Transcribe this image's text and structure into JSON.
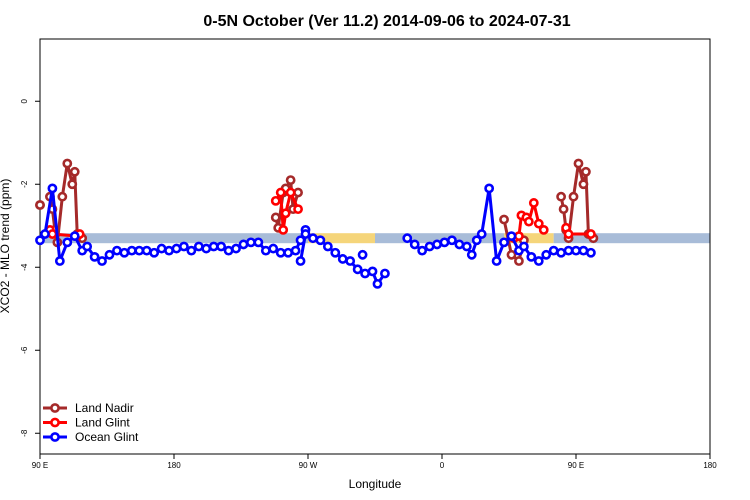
{
  "chart_data": {
    "type": "line",
    "title": "0-5N October (Ver 11.2)   2014-09-06 to 2024-07-31",
    "xlabel": "Longitude",
    "ylabel": "XCO2 - MLO trend (ppm)",
    "xlim": [
      -90,
      180
    ],
    "ylim": [
      -8.5,
      1.5
    ],
    "x_ticks": [
      {
        "value": -90,
        "label": "90 E"
      },
      {
        "value": -36,
        "label": "180"
      },
      {
        "value": 18,
        "label": "90 W"
      },
      {
        "value": 72,
        "label": "0"
      },
      {
        "value": 126,
        "label": "90 E"
      },
      {
        "value": 180,
        "label": "180"
      }
    ],
    "y_ticks": [
      {
        "value": 0,
        "label": "0"
      },
      {
        "value": -2,
        "label": "-2"
      },
      {
        "value": -4,
        "label": "-4"
      },
      {
        "value": -6,
        "label": "-6"
      },
      {
        "value": -8,
        "label": "-8"
      }
    ],
    "background_bands": [
      {
        "y": -3.3,
        "segments": [
          [
            -90,
            18,
            "#a8bcd8"
          ],
          [
            18,
            45,
            "#f5d57a"
          ],
          [
            45,
            97,
            "#a8bcd8"
          ],
          [
            97,
            117,
            "#f5d57a"
          ],
          [
            117,
            180,
            "#a8bcd8"
          ]
        ]
      }
    ],
    "series": [
      {
        "name": "Land Nadir",
        "color": "#a52a2a",
        "segments": [
          [
            [
              -86,
              -2.3
            ],
            [
              -85,
              -2.6
            ],
            [
              -84,
              -3.1
            ],
            [
              -83,
              -3.4
            ],
            [
              -81,
              -2.3
            ],
            [
              -79,
              -1.5
            ],
            [
              -77,
              -2.0
            ],
            [
              -76,
              -1.7
            ],
            [
              -75,
              -3.2
            ],
            [
              -73,
              -3.3
            ]
          ],
          [
            [
              5,
              -2.8
            ],
            [
              6,
              -3.05
            ],
            [
              8,
              -2.2
            ],
            [
              9,
              -2.1
            ],
            [
              11,
              -1.9
            ],
            [
              12,
              -2.6
            ],
            [
              14,
              -2.2
            ]
          ],
          [
            [
              97,
              -2.85
            ],
            [
              100,
              -3.7
            ],
            [
              103,
              -3.85
            ],
            [
              105,
              -3.35
            ]
          ],
          [
            [
              -90,
              -2.5
            ],
            [
              -90,
              -2.5
            ]
          ],
          [
            [
              120,
              -2.3
            ],
            [
              121,
              -2.6
            ],
            [
              122,
              -3.1
            ],
            [
              123,
              -3.3
            ],
            [
              125,
              -2.3
            ],
            [
              127,
              -1.5
            ],
            [
              129,
              -2.0
            ],
            [
              130,
              -1.7
            ],
            [
              131,
              -3.2
            ],
            [
              133,
              -3.3
            ]
          ]
        ]
      },
      {
        "name": "Land Glint",
        "color": "#ff0000",
        "segments": [
          [
            [
              -86,
              -3.1
            ],
            [
              -85,
              -3.2
            ],
            [
              -75,
              -3.25
            ],
            [
              -74,
              -3.2
            ]
          ],
          [
            [
              5,
              -2.4
            ],
            [
              7,
              -2.2
            ],
            [
              8,
              -3.1
            ],
            [
              9,
              -2.7
            ],
            [
              11,
              -2.2
            ],
            [
              14,
              -2.6
            ]
          ],
          [
            [
              101,
              -3.3
            ],
            [
              103,
              -3.25
            ],
            [
              104,
              -2.75
            ],
            [
              106,
              -2.8
            ],
            [
              107,
              -2.9
            ],
            [
              109,
              -2.45
            ],
            [
              111,
              -2.95
            ],
            [
              113,
              -3.1
            ]
          ],
          [
            [
              122,
              -3.05
            ],
            [
              123,
              -3.2
            ],
            [
              132,
              -3.2
            ]
          ]
        ]
      },
      {
        "name": "Ocean Glint",
        "color": "#0000ff",
        "segments": [
          [
            [
              -90,
              -3.35
            ],
            [
              -88,
              -3.2
            ],
            [
              -85,
              -2.1
            ],
            [
              -82,
              -3.85
            ],
            [
              -79,
              -3.4
            ],
            [
              -76,
              -3.25
            ],
            [
              -73,
              -3.6
            ],
            [
              -71,
              -3.5
            ],
            [
              -68,
              -3.75
            ],
            [
              -65,
              -3.85
            ],
            [
              -62,
              -3.7
            ],
            [
              -59,
              -3.6
            ],
            [
              -56,
              -3.65
            ],
            [
              -53,
              -3.6
            ],
            [
              -50,
              -3.6
            ],
            [
              -47,
              -3.6
            ],
            [
              -44,
              -3.65
            ],
            [
              -41,
              -3.55
            ],
            [
              -38,
              -3.6
            ],
            [
              -35,
              -3.55
            ],
            [
              -32,
              -3.5
            ],
            [
              -29,
              -3.6
            ],
            [
              -26,
              -3.5
            ],
            [
              -23,
              -3.55
            ],
            [
              -20,
              -3.5
            ],
            [
              -17,
              -3.5
            ],
            [
              -14,
              -3.6
            ],
            [
              -11,
              -3.55
            ],
            [
              -8,
              -3.45
            ],
            [
              -5,
              -3.4
            ],
            [
              -2,
              -3.4
            ],
            [
              1,
              -3.6
            ],
            [
              4,
              -3.55
            ],
            [
              7,
              -3.65
            ],
            [
              10,
              -3.65
            ],
            [
              13,
              -3.6
            ],
            [
              15,
              -3.35
            ],
            [
              17,
              -3.1
            ]
          ],
          [
            [
              15,
              -3.85
            ],
            [
              17,
              -3.2
            ],
            [
              20,
              -3.3
            ],
            [
              23,
              -3.35
            ],
            [
              26,
              -3.5
            ],
            [
              29,
              -3.65
            ],
            [
              32,
              -3.8
            ],
            [
              35,
              -3.85
            ],
            [
              38,
              -4.05
            ],
            [
              41,
              -4.15
            ],
            [
              44,
              -4.1
            ],
            [
              46,
              -4.4
            ],
            [
              49,
              -4.15
            ]
          ],
          [
            [
              40,
              -3.7
            ]
          ],
          [
            [
              58,
              -3.3
            ],
            [
              61,
              -3.45
            ],
            [
              64,
              -3.6
            ],
            [
              67,
              -3.5
            ],
            [
              70,
              -3.45
            ],
            [
              73,
              -3.4
            ],
            [
              76,
              -3.35
            ],
            [
              79,
              -3.45
            ],
            [
              82,
              -3.5
            ],
            [
              84,
              -3.7
            ],
            [
              86,
              -3.35
            ],
            [
              88,
              -3.2
            ],
            [
              91,
              -2.1
            ],
            [
              94,
              -3.85
            ],
            [
              97,
              -3.4
            ],
            [
              100,
              -3.25
            ],
            [
              103,
              -3.6
            ],
            [
              105,
              -3.5
            ],
            [
              108,
              -3.75
            ],
            [
              111,
              -3.85
            ],
            [
              114,
              -3.7
            ],
            [
              117,
              -3.6
            ],
            [
              120,
              -3.65
            ],
            [
              123,
              -3.6
            ],
            [
              126,
              -3.6
            ],
            [
              129,
              -3.6
            ],
            [
              132,
              -3.65
            ]
          ]
        ]
      }
    ],
    "legend": {
      "position": "bottom-left"
    }
  }
}
